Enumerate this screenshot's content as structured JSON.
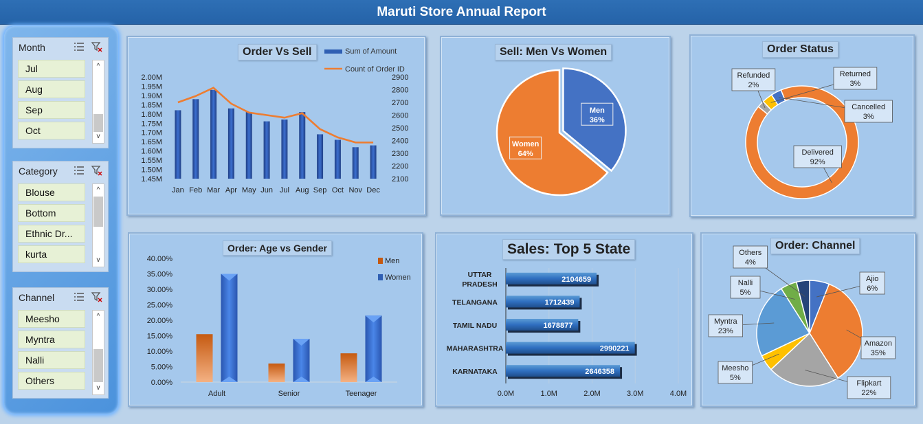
{
  "title": "Maruti Store Annual Report",
  "slicers": {
    "month": {
      "label": "Month",
      "items": [
        "Jul",
        "Aug",
        "Sep",
        "Oct"
      ]
    },
    "category": {
      "label": "Category",
      "items": [
        "Blouse",
        "Bottom",
        "Ethnic Dr...",
        "kurta"
      ]
    },
    "channel": {
      "label": "Channel",
      "items": [
        "Meesho",
        "Myntra",
        "Nalli",
        "Others"
      ]
    }
  },
  "chart_data": [
    {
      "id": "order_vs_sell",
      "type": "bar",
      "title": "Order Vs Sell",
      "categories": [
        "Jan",
        "Feb",
        "Mar",
        "Apr",
        "May",
        "Jun",
        "Jul",
        "Aug",
        "Sep",
        "Oct",
        "Nov",
        "Dec"
      ],
      "series": [
        {
          "name": "Sum of Amount",
          "type": "bar",
          "axis": "left",
          "values": [
            1.82,
            1.88,
            1.93,
            1.83,
            1.81,
            1.76,
            1.77,
            1.81,
            1.69,
            1.66,
            1.62,
            1.63
          ]
        },
        {
          "name": "Count of Order ID",
          "type": "line",
          "axis": "right",
          "values": [
            2700,
            2750,
            2815,
            2690,
            2620,
            2600,
            2580,
            2615,
            2490,
            2425,
            2385,
            2385
          ]
        }
      ],
      "yticks_left": [
        "2.00M",
        "1.95M",
        "1.90M",
        "1.85M",
        "1.80M",
        "1.75M",
        "1.70M",
        "1.65M",
        "1.60M",
        "1.55M",
        "1.50M",
        "1.45M"
      ],
      "yticks_right": [
        "2900",
        "2800",
        "2700",
        "2600",
        "2500",
        "2400",
        "2300",
        "2200",
        "2100"
      ],
      "ylim_left": [
        1.45,
        2.0
      ],
      "ylim_right": [
        2100,
        2900
      ],
      "colors": {
        "bar": "#2f5fb3",
        "line": "#ed7d31"
      }
    },
    {
      "id": "men_vs_women",
      "type": "pie",
      "title": "Sell: Men Vs Women",
      "slices": [
        {
          "name": "Men",
          "pct_label": "36%",
          "value": 36,
          "color": "#4472c4"
        },
        {
          "name": "Women",
          "pct_label": "64%",
          "value": 64,
          "color": "#ed7d31"
        }
      ]
    },
    {
      "id": "order_status",
      "type": "pie",
      "title": "Order Status",
      "slices": [
        {
          "name": "Delivered",
          "pct_label": "92%",
          "value": 92,
          "color": "#ed7d31"
        },
        {
          "name": "Refunded",
          "pct_label": "2%",
          "value": 2,
          "color": "#a5a5a5"
        },
        {
          "name": "Returned",
          "pct_label": "3%",
          "value": 3,
          "color": "#ffc000"
        },
        {
          "name": "Cancelled",
          "pct_label": "3%",
          "value": 3,
          "color": "#4472c4"
        }
      ]
    },
    {
      "id": "age_vs_gender",
      "type": "bar",
      "title": "Order: Age vs Gender",
      "categories": [
        "Adult",
        "Senior",
        "Teenager"
      ],
      "series": [
        {
          "name": "Men",
          "values": [
            15.5,
            6.0,
            9.3
          ],
          "color": "#c55a11"
        },
        {
          "name": "Women",
          "values": [
            35.0,
            14.0,
            21.5
          ],
          "color": "#2f5fb3"
        }
      ],
      "yticks": [
        "40.00%",
        "35.00%",
        "30.00%",
        "25.00%",
        "20.00%",
        "15.00%",
        "10.00%",
        "5.00%",
        "0.00%"
      ],
      "ylim": [
        0,
        40
      ]
    },
    {
      "id": "top5_state",
      "type": "bar",
      "orientation": "horizontal",
      "title": "Sales: Top 5 State",
      "categories": [
        "UTTAR PRADESH",
        "TELANGANA",
        "TAMIL NADU",
        "MAHARASHTRA",
        "KARNATAKA"
      ],
      "values": [
        2104659,
        1712439,
        1678877,
        2990221,
        2646358
      ],
      "value_labels": [
        "2104659",
        "1712439",
        "1678877",
        "2990221",
        "2646358"
      ],
      "xticks": [
        "0.0M",
        "1.0M",
        "2.0M",
        "3.0M",
        "4.0M"
      ],
      "xlim": [
        0,
        4000000
      ]
    },
    {
      "id": "order_channel",
      "type": "pie",
      "title": "Order: Channel",
      "slices": [
        {
          "name": "Ajio",
          "pct_label": "6%",
          "value": 6,
          "color": "#4472c4"
        },
        {
          "name": "Amazon",
          "pct_label": "35%",
          "value": 35,
          "color": "#ed7d31"
        },
        {
          "name": "Flipkart",
          "pct_label": "22%",
          "value": 22,
          "color": "#a5a5a5"
        },
        {
          "name": "Meesho",
          "pct_label": "5%",
          "value": 5,
          "color": "#ffc000"
        },
        {
          "name": "Myntra",
          "pct_label": "23%",
          "value": 23,
          "color": "#5b9bd5"
        },
        {
          "name": "Nalli",
          "pct_label": "5%",
          "value": 5,
          "color": "#70ad47"
        },
        {
          "name": "Others",
          "pct_label": "4%",
          "value": 4,
          "color": "#264478"
        }
      ]
    }
  ]
}
